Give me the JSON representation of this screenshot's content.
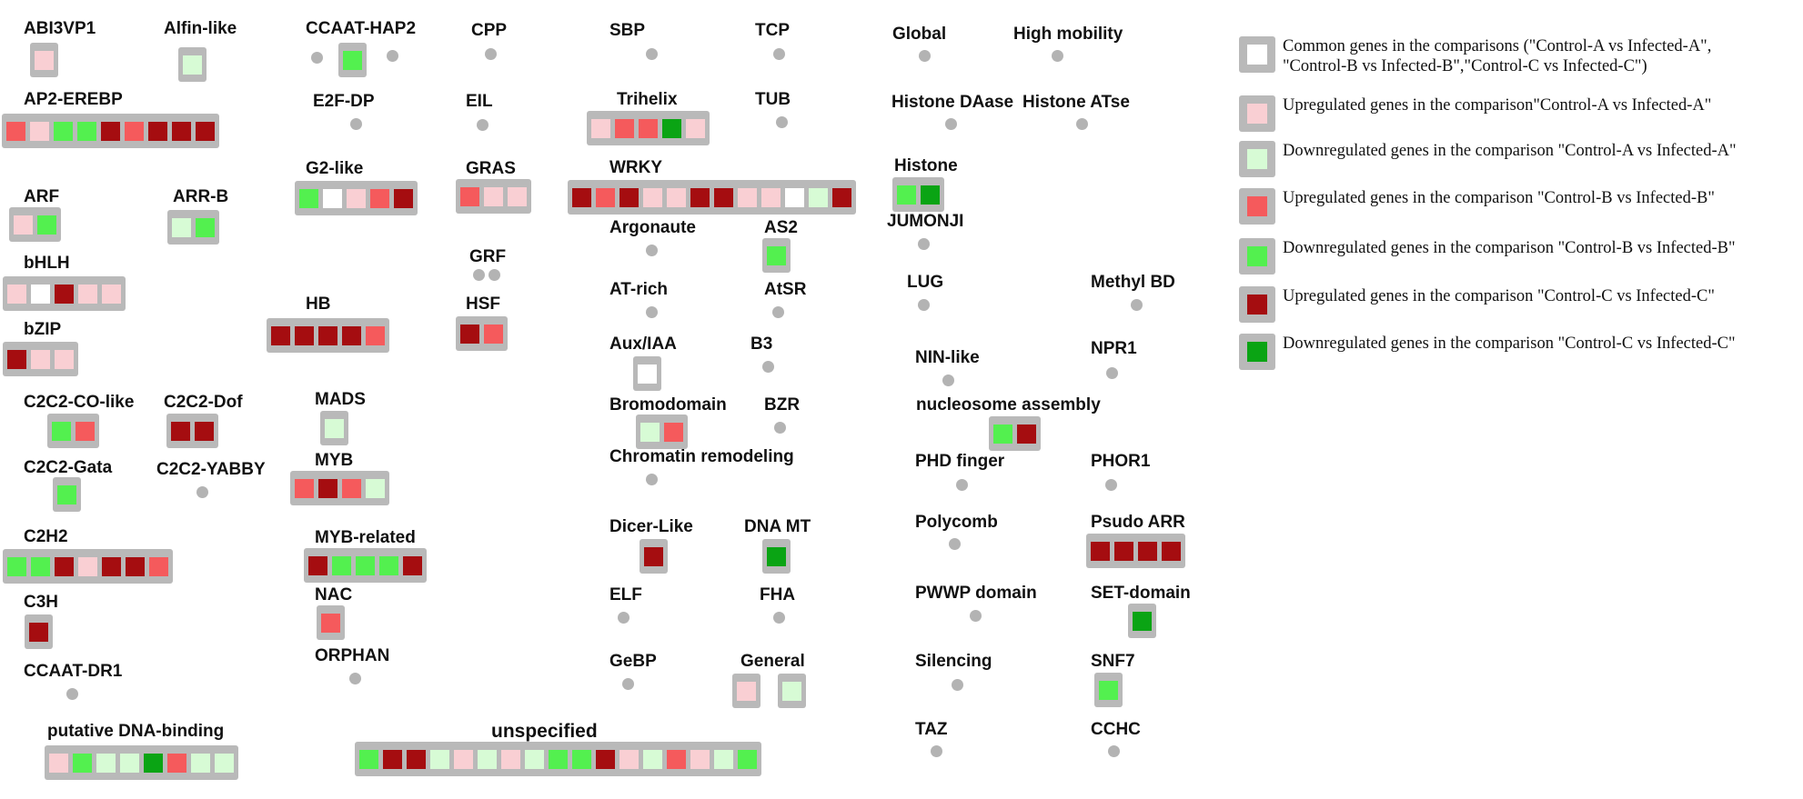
{
  "color_key": {
    "common": "#ffffff",
    "upA": "#f9cfd3",
    "downA": "#d7fbd5",
    "upB": "#f55a5c",
    "downB": "#53f04f",
    "upC": "#a50d10",
    "downC": "#0aa414",
    "box": "#b9b9b9",
    "dot": "#b3b3b3"
  },
  "legend": [
    {
      "key": "common",
      "line1": "Common genes in the comparisons (\"Control-A vs Infected-A\",",
      "line2": "\"Control-B vs Infected-B\",\"Control-C vs Infected-C\")"
    },
    {
      "key": "upA",
      "line1": "Upregulated genes in the comparison\"Control-A vs Infected-A\"",
      "line2": ""
    },
    {
      "key": "downA",
      "line1": "Downregulated genes in the comparison \"Control-A vs Infected-A\"",
      "line2": ""
    },
    {
      "key": "upB",
      "line1": "Upregulated genes in the comparison \"Control-B vs Infected-B\"",
      "line2": ""
    },
    {
      "key": "downB",
      "line1": "Downregulated genes in the comparison \"Control-B vs Infected-B\"",
      "line2": ""
    },
    {
      "key": "upC",
      "line1": "Upregulated genes in the comparison \"Control-C vs Infected-C\"",
      "line2": ""
    },
    {
      "key": "downC",
      "line1": "Downregulated genes in the comparison \"Control-C vs Infected-C\"",
      "line2": ""
    }
  ],
  "families": [
    {
      "label": "ABI3VP1",
      "genes": [
        "upA"
      ]
    },
    {
      "label": "Alfin-like",
      "genes": [
        "downA"
      ]
    },
    {
      "label": "AP2-EREBP",
      "genes": [
        "upB",
        "upA",
        "downB",
        "downB",
        "upC",
        "upB",
        "upC",
        "upC",
        "upC"
      ]
    },
    {
      "label": "ARF",
      "genes": [
        "upA",
        "downB"
      ]
    },
    {
      "label": "ARR-B",
      "genes": [
        "downA",
        "downB"
      ]
    },
    {
      "label": "bHLH",
      "genes": [
        "upA",
        "common",
        "upC",
        "upA",
        "upA"
      ]
    },
    {
      "label": "bZIP",
      "genes": [
        "upC",
        "upA",
        "upA"
      ]
    },
    {
      "label": "C2C2-CO-like",
      "genes": [
        "downB",
        "upB"
      ]
    },
    {
      "label": "C2C2-Dof",
      "genes": [
        "upC",
        "upC"
      ]
    },
    {
      "label": "C2C2-Gata",
      "genes": [
        "downB"
      ]
    },
    {
      "label": "C2C2-YABBY",
      "genes": []
    },
    {
      "label": "C2H2",
      "genes": [
        "downB",
        "downB",
        "upC",
        "upA",
        "upC",
        "upC",
        "upB"
      ]
    },
    {
      "label": "C3H",
      "genes": [
        "upC"
      ]
    },
    {
      "label": "CCAAT-DR1",
      "genes": []
    },
    {
      "label": "putative DNA-binding",
      "genes": [
        "upA",
        "downB",
        "downA",
        "downA",
        "downC",
        "upB",
        "downA",
        "downA"
      ]
    },
    {
      "label": "CCAAT-HAP2",
      "genes": [
        "downB"
      ]
    },
    {
      "label": "E2F-DP",
      "genes": []
    },
    {
      "label": "G2-like",
      "genes": [
        "downB",
        "common",
        "upA",
        "upB",
        "upC"
      ]
    },
    {
      "label": "HB",
      "genes": [
        "upC",
        "upC",
        "upC",
        "upC",
        "upB"
      ]
    },
    {
      "label": "MADS",
      "genes": [
        "downA"
      ]
    },
    {
      "label": "MYB",
      "genes": [
        "upB",
        "upC",
        "upB",
        "downA"
      ]
    },
    {
      "label": "MYB-related",
      "genes": [
        "upC",
        "downB",
        "downB",
        "downB",
        "upC"
      ]
    },
    {
      "label": "NAC",
      "genes": [
        "upB"
      ]
    },
    {
      "label": "ORPHAN",
      "genes": []
    },
    {
      "label": "CPP",
      "genes": []
    },
    {
      "label": "EIL",
      "genes": []
    },
    {
      "label": "GRAS",
      "genes": [
        "upB",
        "upA",
        "upA"
      ]
    },
    {
      "label": "GRF",
      "genes": []
    },
    {
      "label": "HSF",
      "genes": [
        "upC",
        "upB"
      ]
    },
    {
      "label": "unspecified",
      "genes": [
        "downB",
        "upC",
        "upC",
        "downA",
        "upA",
        "downA",
        "upA",
        "downA",
        "downB",
        "downB",
        "upC",
        "upA",
        "downA",
        "upB",
        "upA",
        "downA",
        "downB"
      ]
    },
    {
      "label": "SBP",
      "genes": []
    },
    {
      "label": "TCP",
      "genes": []
    },
    {
      "label": "Trihelix",
      "genes": [
        "upA",
        "upB",
        "upB",
        "downC",
        "upA"
      ]
    },
    {
      "label": "TUB",
      "genes": []
    },
    {
      "label": "WRKY",
      "genes": [
        "upC",
        "upB",
        "upC",
        "upA",
        "upA",
        "upC",
        "upC",
        "upA",
        "upA",
        "common",
        "downA",
        "upC"
      ]
    },
    {
      "label": "Argonaute",
      "genes": []
    },
    {
      "label": "AS2",
      "genes": [
        "downB"
      ]
    },
    {
      "label": "AT-rich",
      "genes": []
    },
    {
      "label": "AtSR",
      "genes": []
    },
    {
      "label": "Aux/IAA",
      "genes": [
        "common"
      ]
    },
    {
      "label": "B3",
      "genes": []
    },
    {
      "label": "Bromodomain",
      "genes": [
        "downA",
        "upB"
      ]
    },
    {
      "label": "BZR",
      "genes": []
    },
    {
      "label": "Chromatin remodeling",
      "genes": []
    },
    {
      "label": "Dicer-Like",
      "genes": [
        "upC"
      ]
    },
    {
      "label": "DNA MT",
      "genes": [
        "downC"
      ]
    },
    {
      "label": "ELF",
      "genes": []
    },
    {
      "label": "FHA",
      "genes": []
    },
    {
      "label": "GeBP",
      "genes": []
    },
    {
      "label": "General",
      "genes": [
        "upA"
      ],
      "extra_box": [
        "downA"
      ]
    },
    {
      "label": "Global",
      "genes": []
    },
    {
      "label": "High mobility",
      "genes": []
    },
    {
      "label": "Histone DAase",
      "genes": []
    },
    {
      "label": "Histone ATse",
      "genes": []
    },
    {
      "label": "Histone",
      "genes": [
        "downB",
        "downC"
      ]
    },
    {
      "label": "JUMONJI",
      "genes": []
    },
    {
      "label": "LUG",
      "genes": []
    },
    {
      "label": "Methyl BD",
      "genes": []
    },
    {
      "label": "NIN-like",
      "genes": []
    },
    {
      "label": "NPR1",
      "genes": []
    },
    {
      "label": "nucleosome assembly",
      "genes": [
        "downB",
        "upC"
      ]
    },
    {
      "label": "PHD finger",
      "genes": []
    },
    {
      "label": "PHOR1",
      "genes": []
    },
    {
      "label": "Polycomb",
      "genes": []
    },
    {
      "label": "Psudo ARR",
      "genes": [
        "upC",
        "upC",
        "upC",
        "upC"
      ]
    },
    {
      "label": "PWWP domain",
      "genes": []
    },
    {
      "label": "SET-domain",
      "genes": [
        "downC"
      ]
    },
    {
      "label": "Silencing",
      "genes": []
    },
    {
      "label": "SNF7",
      "genes": [
        "downB"
      ]
    },
    {
      "label": "TAZ",
      "genes": []
    },
    {
      "label": "CCHC",
      "genes": []
    }
  ]
}
